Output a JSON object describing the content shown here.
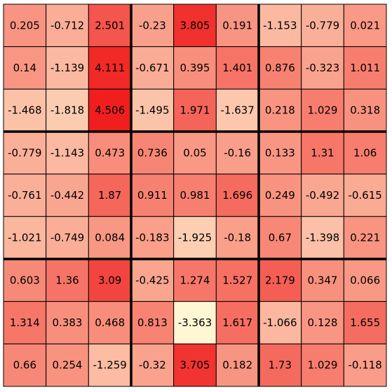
{
  "chart_data": {
    "type": "heatmap",
    "rows": 9,
    "cols": 9,
    "block_size": 3,
    "grid": true,
    "values": [
      [
        0.205,
        -0.712,
        2.501,
        -0.23,
        3.805,
        0.191,
        -1.153,
        -0.779,
        0.021
      ],
      [
        0.14,
        -1.139,
        4.111,
        -0.671,
        0.395,
        1.401,
        0.876,
        -0.323,
        1.011
      ],
      [
        -1.468,
        -1.818,
        4.506,
        -1.495,
        1.971,
        -1.637,
        0.218,
        1.029,
        0.318
      ],
      [
        -0.779,
        -1.143,
        0.473,
        0.736,
        0.05,
        -0.16,
        0.133,
        1.31,
        1.06
      ],
      [
        -0.761,
        -0.442,
        1.87,
        0.911,
        0.981,
        1.696,
        0.249,
        -0.492,
        -0.615
      ],
      [
        -1.021,
        -0.749,
        0.084,
        -0.183,
        -1.925,
        -0.18,
        0.67,
        -1.398,
        0.221
      ],
      [
        0.603,
        1.36,
        3.09,
        -0.425,
        1.274,
        1.527,
        2.179,
        0.347,
        0.066
      ],
      [
        1.314,
        0.383,
        0.468,
        0.813,
        -3.363,
        1.617,
        -1.066,
        0.128,
        1.655
      ],
      [
        0.66,
        0.254,
        -1.259,
        -0.32,
        3.705,
        0.182,
        1.73,
        1.029,
        -0.118
      ]
    ],
    "labels": [
      [
        "0.205",
        "-0.712",
        "2.501",
        "-0.23",
        "3.805",
        "0.191",
        "-1.153",
        "-0.779",
        "0.021"
      ],
      [
        "0.14",
        "-1.139",
        "4.111",
        "-0.671",
        "0.395",
        "1.401",
        "0.876",
        "-0.323",
        "1.011"
      ],
      [
        "-1.468",
        "-1.818",
        "4.506",
        "-1.495",
        "1.971",
        "-1.637",
        "0.218",
        "1.029",
        "0.318"
      ],
      [
        "-0.779",
        "-1.143",
        "0.473",
        "0.736",
        "0.05",
        "-0.16",
        "0.133",
        "1.31",
        "1.06"
      ],
      [
        "-0.761",
        "-0.442",
        "1.87",
        "0.911",
        "0.981",
        "1.696",
        "0.249",
        "-0.492",
        "-0.615"
      ],
      [
        "-1.021",
        "-0.749",
        "0.084",
        "-0.183",
        "-1.925",
        "-0.18",
        "0.67",
        "-1.398",
        "0.221"
      ],
      [
        "0.603",
        "1.36",
        "3.09",
        "-0.425",
        "1.274",
        "1.527",
        "2.179",
        "0.347",
        "0.066"
      ],
      [
        "1.314",
        "0.383",
        "0.468",
        "0.813",
        "-3.363",
        "1.617",
        "-1.066",
        "0.128",
        "1.655"
      ],
      [
        "0.66",
        "0.254",
        "-1.259",
        "-0.32",
        "3.705",
        "0.182",
        "1.73",
        "1.029",
        "-0.118"
      ]
    ],
    "color_scale": {
      "min_value": -3.363,
      "max_value": 4.506,
      "min_color": "#FFF6D4",
      "max_color": "#F01E1E"
    },
    "grid_color": "#000000"
  }
}
